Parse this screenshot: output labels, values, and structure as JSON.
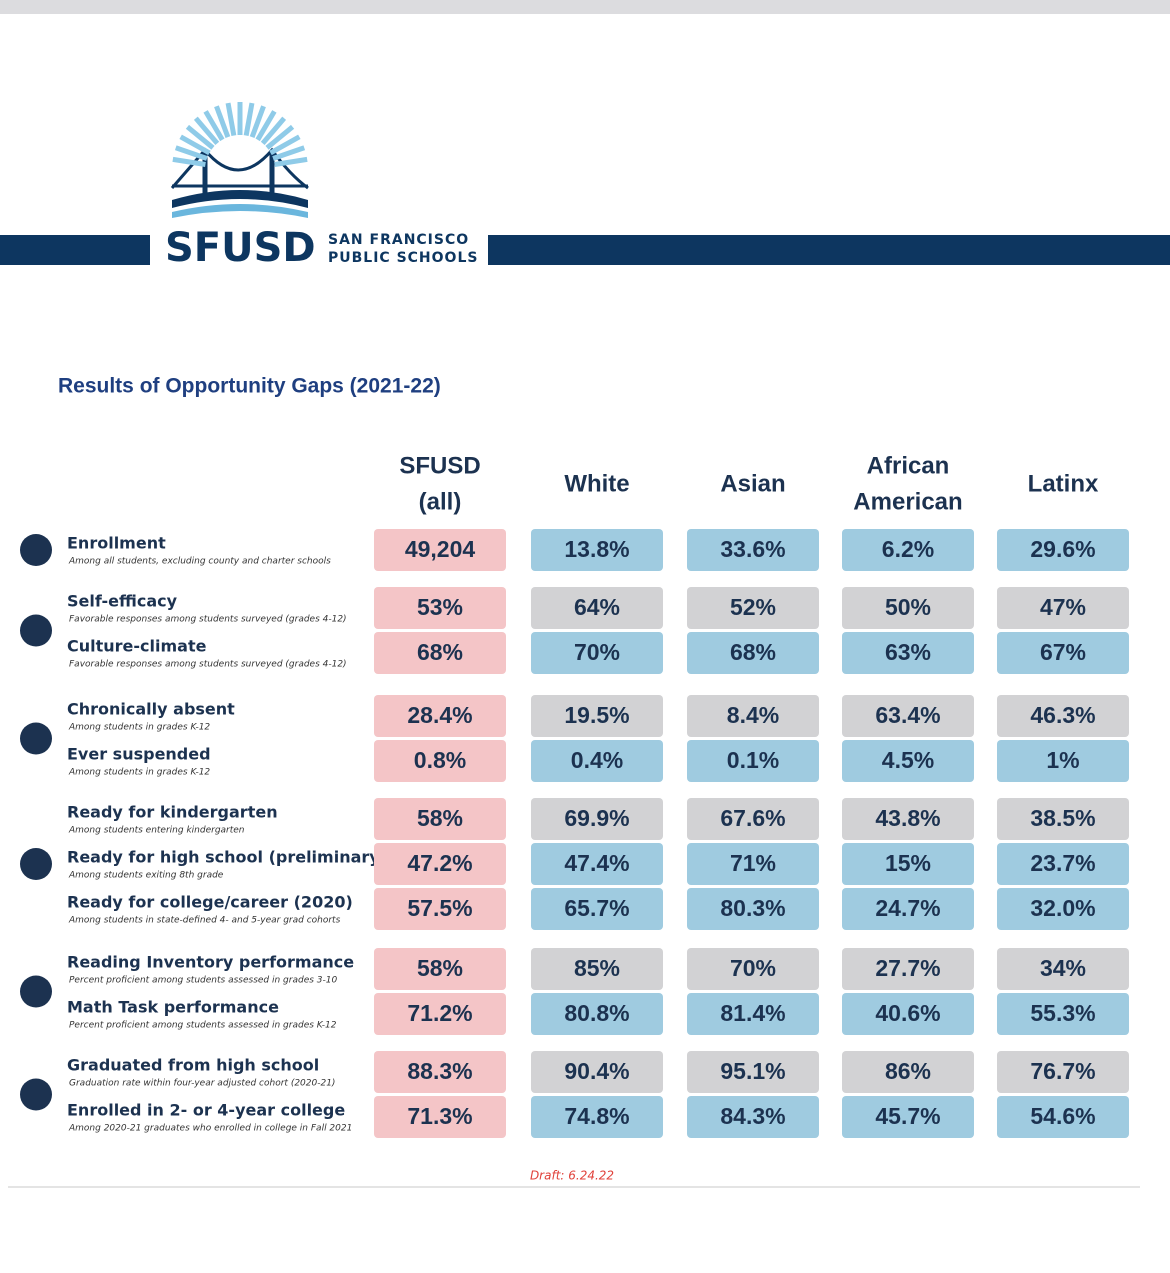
{
  "header": {
    "logo_name": "SFUSD",
    "logo_line1": "SAN FRANCISCO",
    "logo_line2": "PUBLIC SCHOOLS"
  },
  "title": "Results of Opportunity Gaps (2021-22)",
  "first_column_color": "#f4c5c7",
  "columns": [
    [
      "SFUSD",
      "(all)"
    ],
    [
      "White"
    ],
    [
      "Asian"
    ],
    [
      "African",
      "American"
    ],
    [
      "Latinx"
    ]
  ],
  "groups": [
    {
      "rows": [
        {
          "label": "Enrollment",
          "note": "Among all students, excluding county and charter schools",
          "color": "#9fcbe0",
          "values": [
            "49,204",
            "13.8%",
            "33.6%",
            "6.2%",
            "29.6%"
          ]
        }
      ]
    },
    {
      "rows": [
        {
          "label": "Self-efficacy",
          "note": "Favorable responses among students surveyed (grades 4-12)",
          "color": "#d2d2d4",
          "values": [
            "53%",
            "64%",
            "52%",
            "50%",
            "47%"
          ]
        },
        {
          "label": "Culture-climate",
          "note": "Favorable responses among students surveyed (grades 4-12)",
          "color": "#9fcbe0",
          "values": [
            "68%",
            "70%",
            "68%",
            "63%",
            "67%"
          ]
        }
      ]
    },
    {
      "rows": [
        {
          "label": "Chronically absent",
          "note": "Among students in grades K-12",
          "color": "#d2d2d4",
          "values": [
            "28.4%",
            "19.5%",
            "8.4%",
            "63.4%",
            "46.3%"
          ]
        },
        {
          "label": "Ever suspended",
          "note": "Among students in grades K-12",
          "color": "#9fcbe0",
          "values": [
            "0.8%",
            "0.4%",
            "0.1%",
            "4.5%",
            "1%"
          ]
        }
      ]
    },
    {
      "rows": [
        {
          "label": "Ready for kindergarten",
          "note": "Among students entering kindergarten",
          "color": "#d2d2d4",
          "values": [
            "58%",
            "69.9%",
            "67.6%",
            "43.8%",
            "38.5%"
          ]
        },
        {
          "label": "Ready for high school (preliminary)",
          "note": "Among students exiting 8th grade",
          "color": "#9fcbe0",
          "values": [
            "47.2%",
            "47.4%",
            "71%",
            "15%",
            "23.7%"
          ]
        },
        {
          "label": "Ready for college/career (2020)",
          "note": "Among students in state-defined 4- and 5-year grad cohorts",
          "color": "#9fcbe0",
          "values": [
            "57.5%",
            "65.7%",
            "80.3%",
            "24.7%",
            "32.0%"
          ]
        }
      ]
    },
    {
      "rows": [
        {
          "label": "Reading Inventory performance",
          "note": "Percent proficient among students assessed in grades 3-10",
          "color": "#d2d2d4",
          "values": [
            "58%",
            "85%",
            "70%",
            "27.7%",
            "34%"
          ]
        },
        {
          "label": "Math Task performance",
          "note": "Percent proficient among students assessed in grades K-12",
          "color": "#9fcbe0",
          "values": [
            "71.2%",
            "80.8%",
            "81.4%",
            "40.6%",
            "55.3%"
          ]
        }
      ]
    },
    {
      "rows": [
        {
          "label": "Graduated from high school",
          "note": "Graduation rate within four-year adjusted cohort (2020-21)",
          "color": "#d2d2d4",
          "values": [
            "88.3%",
            "90.4%",
            "95.1%",
            "86%",
            "76.7%"
          ]
        },
        {
          "label": "Enrolled in 2- or 4-year college",
          "note": "Among 2020-21 graduates who enrolled in college in Fall 2021",
          "color": "#9fcbe0",
          "values": [
            "71.3%",
            "74.8%",
            "84.3%",
            "45.7%",
            "54.6%"
          ]
        }
      ]
    }
  ],
  "draft": "Draft: 6.24.22"
}
